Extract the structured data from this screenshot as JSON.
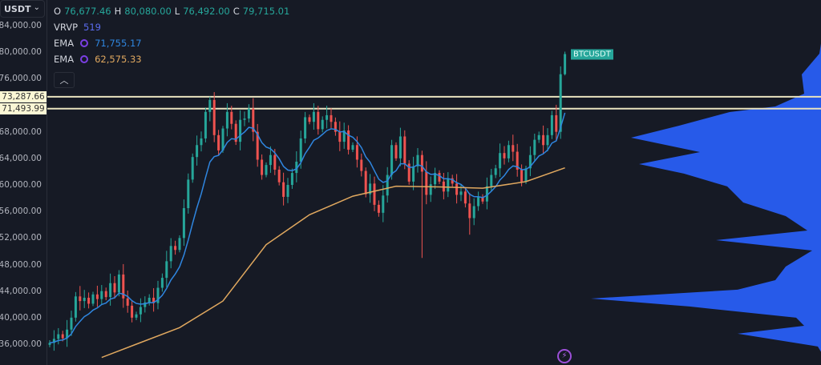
{
  "symbol_select": {
    "label": "USDT",
    "icon": "chevron-down-icon"
  },
  "ohlc": {
    "o_label": "O",
    "open": "76,677.46",
    "h_label": "H",
    "high": "80,080.00",
    "l_label": "L",
    "low": "76,492.00",
    "c_label": "C",
    "close": "79,715.01"
  },
  "indicators": {
    "vrvp": {
      "label": "VRVP",
      "value": "519",
      "color": "#5b6cf0"
    },
    "ema_fast": {
      "label": "EMA",
      "value": "71,755.17",
      "color": "#2f86e0"
    },
    "ema_slow": {
      "label": "EMA",
      "value": "62,575.33",
      "color": "#e0a85f"
    }
  },
  "current_price_tag": "BTCUSDT",
  "horizontal_levels": [
    {
      "label": "73,287.66",
      "price": 73287.66
    },
    {
      "label": "71,493.99",
      "price": 71493.99
    }
  ],
  "colors": {
    "background": "#161a25",
    "up": "#26a69a",
    "down": "#ef5350",
    "level_line": "#e9e3bf",
    "profile": "#2962ff"
  },
  "chart_data": {
    "type": "candlestick",
    "ylim": [
      32000,
      88000
    ],
    "y_ticks": [
      "84,000.00",
      "80,000.00",
      "76,000.00",
      "68,000.00",
      "64,000.00",
      "60,000.00",
      "56,000.00",
      "52,000.00",
      "48,000.00",
      "44,000.00",
      "40,000.00",
      "36,000.00"
    ],
    "y_tick_values": [
      84000,
      80000,
      76000,
      68000,
      64000,
      60000,
      56000,
      52000,
      48000,
      44000,
      40000,
      36000
    ],
    "first_open": 35900,
    "closes": [
      36200,
      36800,
      37500,
      36900,
      38200,
      40000,
      43200,
      42500,
      43000,
      42100,
      43500,
      42800,
      44000,
      43100,
      45200,
      43800,
      46500,
      42900,
      41800,
      40000,
      40500,
      41600,
      42300,
      43000,
      42200,
      44500,
      46000,
      48500,
      50800,
      50200,
      52000,
      56500,
      60800,
      64200,
      66000,
      67000,
      71000,
      72800,
      67500,
      65200,
      68500,
      71000,
      69200,
      66500,
      69800,
      70000,
      71500,
      68000,
      63800,
      61500,
      63000,
      64500,
      62300,
      60400,
      58200,
      60000,
      61800,
      63500,
      67000,
      70200,
      69500,
      71000,
      68400,
      69800,
      70500,
      69500,
      68000,
      66500,
      68200,
      65300,
      66000,
      63800,
      62100,
      58600,
      60200,
      57000,
      55800,
      58400,
      61500,
      66000,
      64000,
      67300,
      63200,
      60500,
      62800,
      64500,
      62000,
      58500,
      60100,
      61800,
      60500,
      59000,
      61000,
      60200,
      58500,
      59000,
      57200,
      55000,
      56800,
      58200,
      57500,
      59800,
      61500,
      62500,
      64800,
      64000,
      66000,
      65000,
      62300,
      60500,
      62500,
      64500,
      66800,
      67500,
      66000,
      67500,
      70500,
      68000,
      76677,
      79715
    ],
    "wick_extremes": [
      {
        "index": 37,
        "high": 73300
      },
      {
        "index": 86,
        "low": 49000
      },
      {
        "index": 97,
        "low": 52500
      },
      {
        "index": 119,
        "high": 80080,
        "low": 76492
      }
    ],
    "ema_slow_points": [
      [
        12,
        34000
      ],
      [
        20,
        36000
      ],
      [
        30,
        38500
      ],
      [
        40,
        42500
      ],
      [
        50,
        51000
      ],
      [
        60,
        55500
      ],
      [
        70,
        58300
      ],
      [
        80,
        59800
      ],
      [
        90,
        59700
      ],
      [
        100,
        59500
      ],
      [
        110,
        60500
      ],
      [
        119,
        62575
      ]
    ],
    "volume_profile": [
      [
        79780,
        2
      ],
      [
        76640,
        24
      ],
      [
        73750,
        21
      ],
      [
        71820,
        57
      ],
      [
        70980,
        114
      ],
      [
        68930,
        177
      ],
      [
        67120,
        237
      ],
      [
        64950,
        151
      ],
      [
        63140,
        227
      ],
      [
        61700,
        171
      ],
      [
        59770,
        117
      ],
      [
        57350,
        97
      ],
      [
        55300,
        44
      ],
      [
        53130,
        17
      ],
      [
        51680,
        131
      ],
      [
        50110,
        11
      ],
      [
        47700,
        44
      ],
      [
        45650,
        57
      ],
      [
        44210,
        104
      ],
      [
        42880,
        287
      ],
      [
        41680,
        164
      ],
      [
        39990,
        31
      ],
      [
        38780,
        21
      ],
      [
        37580,
        104
      ],
      [
        35650,
        4
      ]
    ]
  }
}
